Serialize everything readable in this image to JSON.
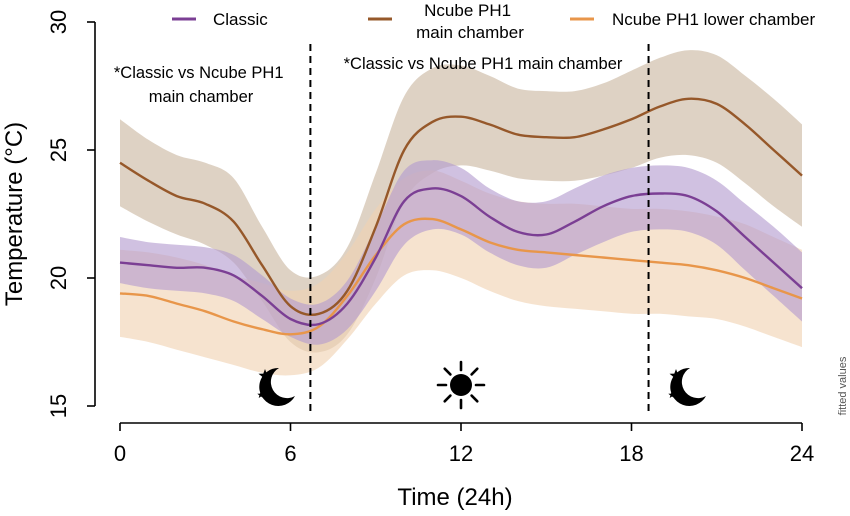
{
  "chart_data": {
    "type": "line",
    "title": "",
    "xlabel": "Time (24h)",
    "ylabel": "Temperature (°C)",
    "xlim": [
      0,
      24
    ],
    "ylim": [
      15,
      30
    ],
    "xticks": [
      0,
      6,
      12,
      18,
      24
    ],
    "yticks": [
      15,
      20,
      25,
      30
    ],
    "grid": false,
    "legend_position": "top",
    "side_note": "fitted values",
    "series": [
      {
        "name": "Classic",
        "color": "#7b3f94",
        "band_color": "#b39bcf",
        "x": [
          0,
          1,
          2,
          3,
          4,
          5,
          6,
          7,
          8,
          9,
          10,
          11,
          12,
          13,
          14,
          15,
          16,
          17,
          18,
          19,
          20,
          21,
          22,
          23,
          24
        ],
        "y": [
          20.6,
          20.5,
          20.4,
          20.4,
          20.1,
          19.3,
          18.4,
          18.2,
          19.0,
          20.8,
          23.0,
          23.5,
          23.2,
          22.4,
          21.8,
          21.7,
          22.2,
          22.8,
          23.2,
          23.3,
          23.2,
          22.6,
          21.6,
          20.6,
          19.6
        ],
        "lower": [
          19.8,
          19.6,
          19.5,
          19.4,
          19.1,
          18.4,
          17.7,
          17.4,
          18.0,
          19.5,
          21.3,
          21.9,
          21.7,
          21.0,
          20.5,
          20.4,
          20.9,
          21.4,
          21.8,
          21.9,
          21.8,
          21.3,
          20.3,
          19.3,
          18.3
        ],
        "upper": [
          21.6,
          21.4,
          21.3,
          21.2,
          20.9,
          20.1,
          19.2,
          19.0,
          19.9,
          22.0,
          24.2,
          24.6,
          24.3,
          23.5,
          23.0,
          23.0,
          23.5,
          24.0,
          24.3,
          24.4,
          24.3,
          23.8,
          22.9,
          22.0,
          21.0
        ]
      },
      {
        "name": "Ncube PH1 main chamber",
        "color": "#96582a",
        "band_color": "#c9b7a0",
        "x": [
          0,
          1,
          2,
          3,
          4,
          5,
          6,
          7,
          8,
          9,
          10,
          11,
          12,
          13,
          14,
          15,
          16,
          17,
          18,
          19,
          20,
          21,
          22,
          23,
          24
        ],
        "y": [
          24.5,
          23.8,
          23.2,
          22.9,
          22.2,
          20.5,
          18.9,
          18.6,
          19.5,
          22.0,
          25.0,
          26.1,
          26.3,
          26.0,
          25.6,
          25.5,
          25.5,
          25.8,
          26.2,
          26.7,
          27.0,
          26.8,
          26.0,
          25.0,
          24.0
        ],
        "lower": [
          22.8,
          22.2,
          21.7,
          21.3,
          20.6,
          19.1,
          17.5,
          17.1,
          17.8,
          20.0,
          23.0,
          24.1,
          24.4,
          24.2,
          23.9,
          23.8,
          23.8,
          24.0,
          24.3,
          24.7,
          24.8,
          24.5,
          23.7,
          22.8,
          22.0
        ],
        "upper": [
          26.2,
          25.4,
          24.8,
          24.5,
          23.9,
          22.0,
          20.3,
          20.1,
          21.2,
          24.1,
          27.1,
          28.2,
          28.3,
          27.9,
          27.4,
          27.3,
          27.3,
          27.6,
          28.1,
          28.6,
          28.9,
          28.7,
          27.9,
          27.0,
          26.0
        ]
      },
      {
        "name": "Ncube PH1 lower chamber",
        "color": "#e8964a",
        "band_color": "#f1d2b2",
        "x": [
          0,
          1,
          2,
          3,
          4,
          5,
          6,
          7,
          8,
          9,
          10,
          11,
          12,
          13,
          14,
          15,
          16,
          17,
          18,
          19,
          20,
          21,
          22,
          23,
          24
        ],
        "y": [
          19.4,
          19.3,
          19.0,
          18.7,
          18.3,
          18.0,
          17.8,
          18.1,
          19.3,
          20.9,
          22.1,
          22.3,
          21.9,
          21.4,
          21.1,
          21.0,
          20.9,
          20.8,
          20.7,
          20.6,
          20.5,
          20.3,
          20.0,
          19.6,
          19.2
        ],
        "lower": [
          17.7,
          17.5,
          17.2,
          16.9,
          16.6,
          16.3,
          16.2,
          16.5,
          17.6,
          19.0,
          20.1,
          20.3,
          20.0,
          19.5,
          19.1,
          18.9,
          18.8,
          18.7,
          18.6,
          18.6,
          18.5,
          18.4,
          18.1,
          17.7,
          17.3
        ],
        "upper": [
          21.1,
          21.0,
          20.8,
          20.5,
          20.1,
          19.8,
          19.5,
          19.8,
          21.0,
          22.7,
          23.9,
          24.2,
          23.8,
          23.3,
          23.0,
          22.9,
          22.9,
          22.8,
          22.7,
          22.7,
          22.6,
          22.4,
          22.1,
          21.6,
          21.1
        ]
      }
    ],
    "vertical_lines": [
      6.7,
      18.6
    ],
    "annotations": [
      {
        "text_lines": [
          "*Classic vs Ncube PH1",
          "main chamber"
        ]
      },
      {
        "text_lines": [
          "*Classic vs Ncube PH1 main chamber"
        ]
      }
    ],
    "period_icons": [
      {
        "icon": "moon-stars-icon",
        "x": 5.6
      },
      {
        "icon": "sun-icon",
        "x": 12.0
      },
      {
        "icon": "moon-stars-icon",
        "x": 19.6
      }
    ]
  }
}
